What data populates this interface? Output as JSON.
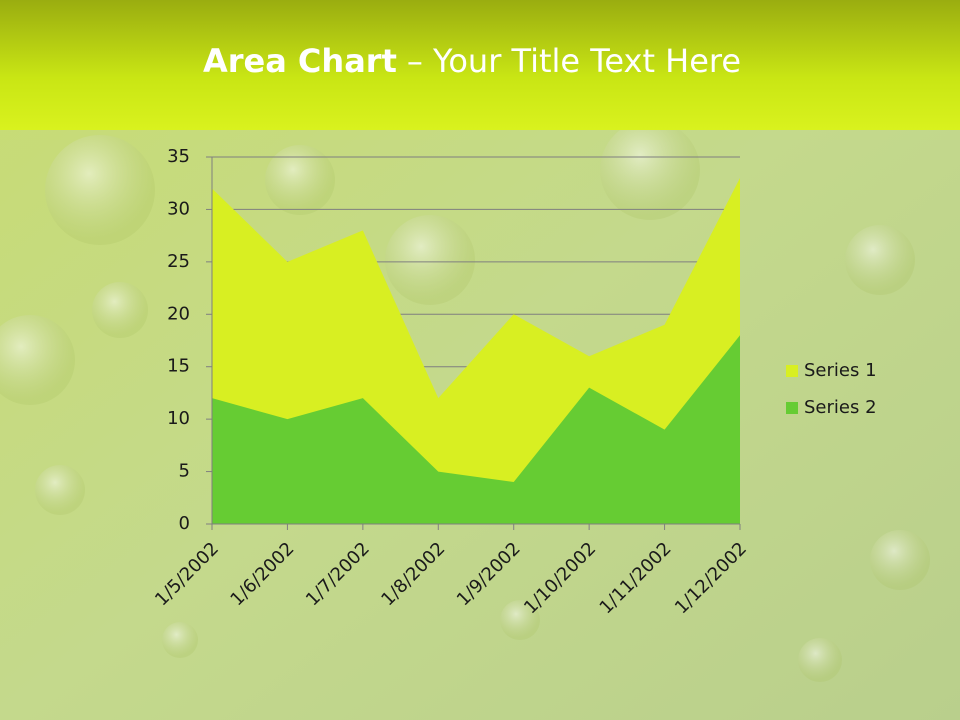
{
  "chart_data": {
    "type": "area",
    "title": [
      "Area Chart",
      "– Your Title Text Here"
    ],
    "categories": [
      "1/5/2002",
      "1/6/2002",
      "1/7/2002",
      "1/8/2002",
      "1/9/2002",
      "1/10/2002",
      "1/11/2002",
      "1/12/2002"
    ],
    "series": [
      {
        "name": "Series 1",
        "color": "#d8ef22",
        "values": [
          32,
          25,
          28,
          12,
          20,
          16,
          19,
          33
        ]
      },
      {
        "name": "Series 2",
        "color": "#66cc33",
        "values": [
          12,
          10,
          12,
          5,
          4,
          13,
          9,
          18
        ]
      }
    ],
    "ylim": [
      0,
      35
    ],
    "yticks": [
      0,
      5,
      10,
      15,
      20,
      25,
      30,
      35
    ],
    "grid": true,
    "legend": "right"
  }
}
